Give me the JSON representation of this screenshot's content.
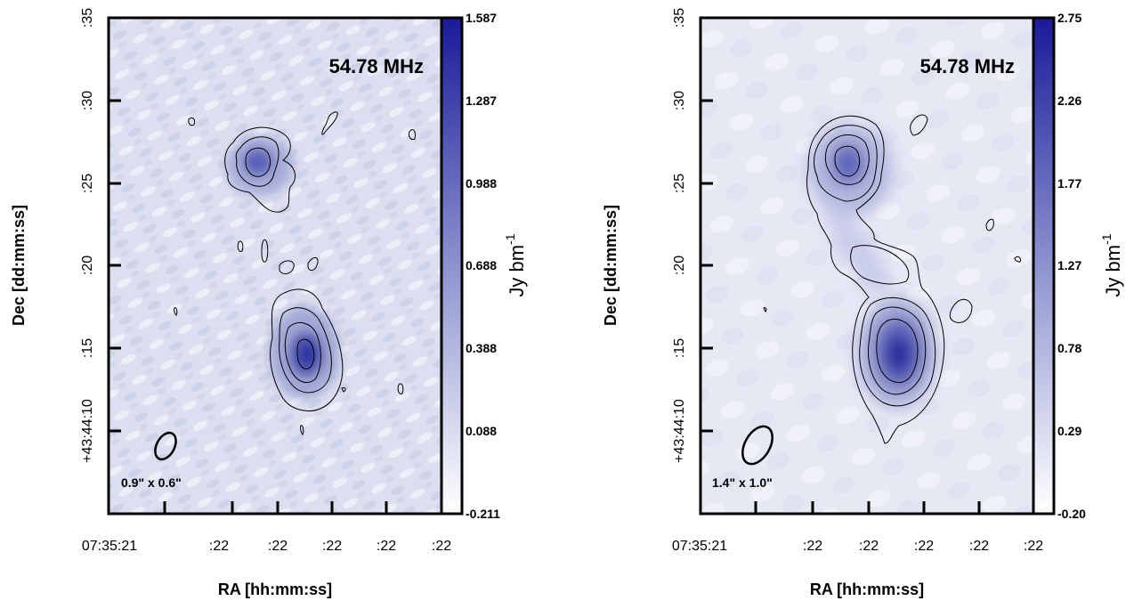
{
  "chart_data": [
    {
      "type": "heatmap",
      "frequency_label": "54.78 MHz",
      "beam_label": "0.9\" x 0.6\"",
      "xlabel": "RA [hh:mm:ss]",
      "ylabel": "Dec [dd:mm:ss]",
      "x_ticks": [
        "07:35:21",
        ":22",
        ":22",
        ":22",
        ":22",
        ":22"
      ],
      "y_ticks": [
        "+43:44:10",
        ":15",
        ":20",
        ":25",
        ":30",
        ":35"
      ],
      "y_values_arcsec": [
        5,
        10,
        15,
        20,
        25,
        30,
        35
      ],
      "ylim_arcsec": [
        0,
        35
      ],
      "colorbar": {
        "label": "Jy bm",
        "label_exponent": "-1",
        "ticks": [
          "1.587",
          "1.287",
          "0.988",
          "0.688",
          "0.388",
          "0.088",
          "-0.211"
        ],
        "values": [
          1.587,
          1.287,
          0.988,
          0.688,
          0.388,
          0.088,
          -0.211
        ],
        "range": [
          -0.211,
          1.587
        ],
        "colormap": [
          "#ffffff",
          "#1a1a9a"
        ]
      },
      "sources": [
        {
          "peak": 1.2
        },
        {
          "peak": 1.587
        }
      ]
    },
    {
      "type": "heatmap",
      "frequency_label": "54.78 MHz",
      "beam_label": "1.4\" x 1.0\"",
      "xlabel": "RA [hh:mm:ss]",
      "ylabel": "Dec [dd:mm:ss]",
      "x_ticks": [
        "07:35:21",
        ":22",
        ":22",
        ":22",
        ":22",
        ":22"
      ],
      "y_ticks": [
        "+43:44:10",
        ":15",
        ":20",
        ":25",
        ":30",
        ":35"
      ],
      "y_values_arcsec": [
        5,
        10,
        15,
        20,
        25,
        30,
        35
      ],
      "ylim_arcsec": [
        0,
        35
      ],
      "colorbar": {
        "label": "Jy bm",
        "label_exponent": "-1",
        "ticks": [
          "2.75",
          "2.26",
          "1.77",
          "1.27",
          "0.78",
          "0.29",
          "-0.20"
        ],
        "values": [
          2.75,
          2.26,
          1.77,
          1.27,
          0.78,
          0.29,
          -0.2
        ],
        "range": [
          -0.2,
          2.75
        ],
        "colormap": [
          "#ffffff",
          "#1a1a9a"
        ]
      },
      "sources": [
        {
          "peak": 1.9
        },
        {
          "peak": 2.75
        }
      ]
    }
  ]
}
